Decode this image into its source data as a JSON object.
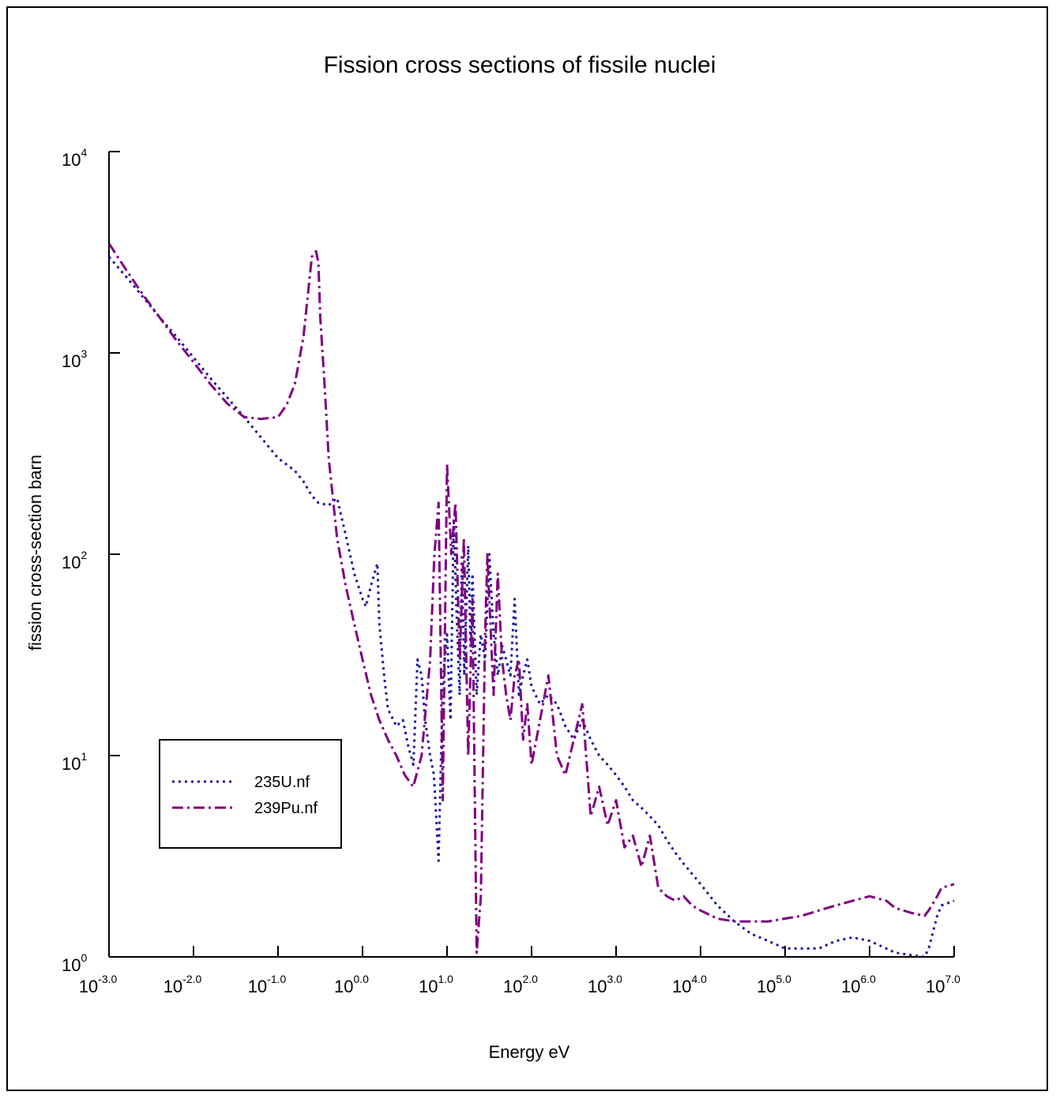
{
  "chart_data": {
    "type": "line",
    "title": "Fission cross sections of fissile nuclei",
    "xlabel": "Energy eV",
    "ylabel": "fission cross-section barn",
    "x_scale": "log",
    "y_scale": "log",
    "xlim": [
      0.001,
      10000000
    ],
    "ylim": [
      1,
      10000
    ],
    "grid": false,
    "legend_position": "left",
    "x_ticks": [
      {
        "base": "10",
        "exp": "-3.0",
        "value": 0.001
      },
      {
        "base": "10",
        "exp": "-2.0",
        "value": 0.01
      },
      {
        "base": "10",
        "exp": "-1.0",
        "value": 0.1
      },
      {
        "base": "10",
        "exp": "0.0",
        "value": 1
      },
      {
        "base": "10",
        "exp": "1.0",
        "value": 10
      },
      {
        "base": "10",
        "exp": "2.0",
        "value": 100
      },
      {
        "base": "10",
        "exp": "3.0",
        "value": 1000
      },
      {
        "base": "10",
        "exp": "4.0",
        "value": 10000
      },
      {
        "base": "10",
        "exp": "5.0",
        "value": 100000
      },
      {
        "base": "10",
        "exp": "6.0",
        "value": 1000000
      },
      {
        "base": "10",
        "exp": "7.0",
        "value": 10000000
      }
    ],
    "y_ticks": [
      {
        "base": "10",
        "exp": "0",
        "value": 1
      },
      {
        "base": "10",
        "exp": "1",
        "value": 10
      },
      {
        "base": "10",
        "exp": "2",
        "value": 100
      },
      {
        "base": "10",
        "exp": "3",
        "value": 1000
      },
      {
        "base": "10",
        "exp": "4",
        "value": 10000
      }
    ],
    "series": [
      {
        "name": "235U.nf",
        "color": "#1a1a9a",
        "style": "dotted",
        "x": [
          0.001,
          0.00158,
          0.00251,
          0.00398,
          0.00631,
          0.01,
          0.0158,
          0.0251,
          0.0398,
          0.0631,
          0.1,
          0.158,
          0.2,
          0.251,
          0.3,
          0.398,
          0.5,
          0.631,
          0.8,
          1.0,
          1.1,
          1.26,
          1.5,
          1.58,
          1.8,
          2.0,
          2.51,
          3.0,
          3.5,
          4.0,
          4.47,
          5.0,
          5.5,
          6.31,
          7.0,
          7.94,
          8.5,
          9.0,
          10.0,
          11.0,
          12.0,
          13.0,
          14.1,
          15.0,
          16.0,
          17.8,
          19.0,
          20.0,
          22.4,
          25.0,
          28.2,
          31.6,
          35.5,
          40.0,
          45.0,
          50.0,
          56.2,
          63.1,
          70.8,
          79.4,
          89.1,
          100,
          126,
          158,
          200,
          251,
          316,
          398,
          501,
          631,
          794,
          1000,
          1260,
          1580,
          2000,
          2510,
          3160,
          4000,
          5000,
          6310,
          10000,
          15800,
          25100,
          39800,
          63100,
          100000,
          158000,
          251000,
          398000,
          631000,
          1000000,
          1580000,
          2000000,
          3160000,
          4470000,
          5000000,
          6310000,
          7080000,
          10000000
        ],
        "y": [
          3000,
          2400,
          1900,
          1500,
          1200,
          950,
          750,
          600,
          480,
          380,
          300,
          260,
          230,
          195,
          180,
          175,
          190,
          125,
          80,
          60,
          55,
          70,
          90,
          45,
          25,
          17,
          14,
          15,
          11,
          9,
          30,
          25,
          15,
          10,
          8,
          3,
          10,
          25,
          40,
          15,
          150,
          50,
          20,
          100,
          25,
          110,
          35,
          80,
          20,
          40,
          30,
          100,
          40,
          25,
          35,
          30,
          25,
          60,
          20,
          25,
          30,
          22,
          18,
          20,
          18,
          14,
          12,
          15,
          12,
          10,
          9,
          8,
          7,
          6,
          5.5,
          5,
          4.5,
          3.8,
          3.3,
          2.9,
          2.3,
          1.8,
          1.5,
          1.3,
          1.2,
          1.1,
          1.1,
          1.1,
          1.2,
          1.25,
          1.2,
          1.1,
          1.05,
          1.02,
          1.0,
          1.1,
          1.6,
          1.8,
          1.9
        ]
      },
      {
        "name": "239Pu.nf",
        "color": "#800080",
        "style": "dash-dot",
        "x": [
          0.001,
          0.00158,
          0.00251,
          0.00398,
          0.00631,
          0.01,
          0.0158,
          0.0251,
          0.0398,
          0.0631,
          0.1,
          0.126,
          0.158,
          0.2,
          0.251,
          0.282,
          0.3,
          0.316,
          0.355,
          0.398,
          0.5,
          0.631,
          0.8,
          1.0,
          1.26,
          1.58,
          2.0,
          2.51,
          3.16,
          3.98,
          5.0,
          6.31,
          7.08,
          7.94,
          8.91,
          10.0,
          11.2,
          12.6,
          14.1,
          15.8,
          17.8,
          20.0,
          22.4,
          25.1,
          28.2,
          30.0,
          31.6,
          35.5,
          39.8,
          44.7,
          50.1,
          56.2,
          63.1,
          70.8,
          79.4,
          89.1,
          100,
          126,
          158,
          200,
          251,
          316,
          398,
          501,
          631,
          794,
          1000,
          1260,
          1580,
          2000,
          2510,
          3160,
          3980,
          5010,
          6310,
          7940,
          10000,
          15800,
          25100,
          39800,
          63100,
          100000,
          158000,
          251000,
          398000,
          631000,
          1000000,
          1580000,
          2000000,
          3160000,
          4470000,
          5000000,
          6310000,
          7080000,
          10000000
        ],
        "y": [
          3500,
          2600,
          1950,
          1500,
          1150,
          900,
          700,
          560,
          480,
          470,
          480,
          550,
          700,
          1200,
          3000,
          3200,
          2800,
          1500,
          700,
          300,
          120,
          70,
          45,
          30,
          20,
          15,
          12,
          10,
          8,
          7,
          10,
          30,
          100,
          180,
          6,
          280,
          100,
          180,
          30,
          120,
          10,
          60,
          1.05,
          2,
          40,
          100,
          60,
          20,
          80,
          30,
          20,
          15,
          25,
          30,
          12,
          18,
          9,
          15,
          25,
          10,
          8,
          12,
          18,
          5,
          7,
          4.5,
          6,
          3.5,
          4,
          2.8,
          4,
          2.2,
          2,
          1.9,
          2.0,
          1.8,
          1.7,
          1.55,
          1.5,
          1.5,
          1.5,
          1.55,
          1.6,
          1.7,
          1.8,
          1.9,
          2.0,
          1.9,
          1.75,
          1.65,
          1.6,
          1.7,
          2.0,
          2.2,
          2.3
        ]
      }
    ]
  }
}
